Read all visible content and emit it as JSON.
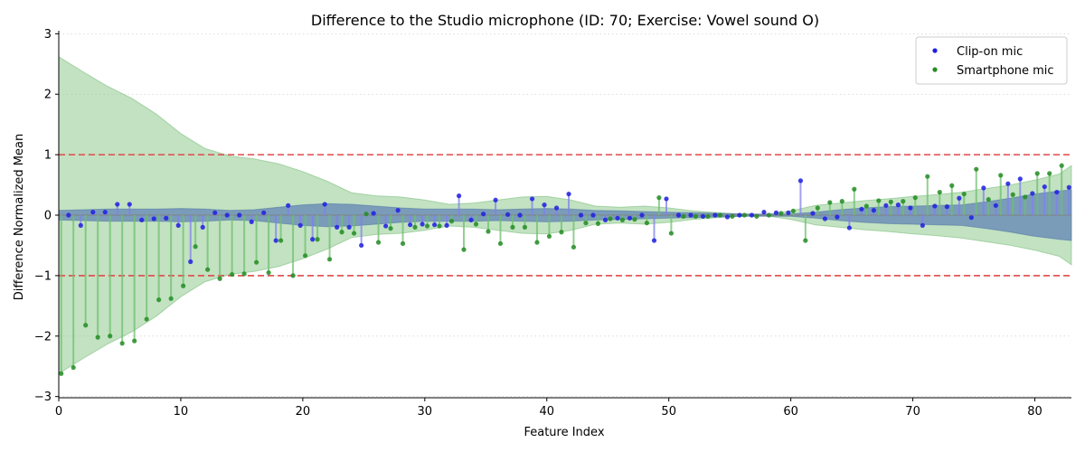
{
  "chart_data": {
    "type": "scatter",
    "title": "Difference to the Studio microphone (ID: 70; Exercise: Vowel sound O)",
    "xlabel": "Feature Index",
    "ylabel": "Difference Normalized Mean",
    "xlim": [
      0,
      83
    ],
    "ylim": [
      -3.02,
      3.05
    ],
    "xticks": [
      0,
      10,
      20,
      30,
      40,
      50,
      60,
      70,
      80
    ],
    "yticks": [
      -3,
      -2,
      -1,
      0,
      1,
      2,
      3
    ],
    "ytick_labels": [
      "−3",
      "−2",
      "−1",
      "0",
      "1",
      "2",
      "3"
    ],
    "threshold_lines": [
      1,
      -1
    ],
    "grid": "horizontal dotted",
    "legend_position": "top-right",
    "colors": {
      "clip_on": "#1f1fe0",
      "smartphone": "#238c23",
      "clip_on_band": "#5b7fb5",
      "smartphone_band": "#8fcb8f",
      "threshold": "#e04848"
    },
    "series": [
      {
        "name": "Clip-on mic",
        "x": [
          0.8,
          1.8,
          2.8,
          3.8,
          4.8,
          5.8,
          6.8,
          7.8,
          8.8,
          9.8,
          10.8,
          11.8,
          12.8,
          13.8,
          14.8,
          15.8,
          16.8,
          17.8,
          18.8,
          19.8,
          20.8,
          21.8,
          22.8,
          23.8,
          24.8,
          25.8,
          26.8,
          27.8,
          28.8,
          29.8,
          30.8,
          31.8,
          32.8,
          33.8,
          34.8,
          35.8,
          36.8,
          37.8,
          38.8,
          39.8,
          40.8,
          41.8,
          42.8,
          43.8,
          44.8,
          45.8,
          46.8,
          47.8,
          48.8,
          49.8,
          50.8,
          51.8,
          52.8,
          53.8,
          54.8,
          55.8,
          56.8,
          57.8,
          58.8,
          59.8,
          60.8,
          61.8,
          62.8,
          63.8,
          64.8,
          65.8,
          66.8,
          67.8,
          68.8,
          69.8,
          70.8,
          71.8,
          72.8,
          73.8,
          74.8,
          75.8,
          76.8,
          77.8,
          78.8,
          79.8,
          80.8,
          81.8,
          82.8
        ],
        "values": [
          0.0,
          -0.17,
          0.05,
          0.05,
          0.18,
          0.18,
          -0.08,
          -0.06,
          -0.05,
          -0.17,
          -0.77,
          -0.2,
          0.04,
          0.0,
          0.0,
          -0.11,
          0.04,
          -0.42,
          0.16,
          -0.17,
          -0.4,
          0.18,
          -0.2,
          -0.2,
          -0.5,
          0.03,
          -0.18,
          0.08,
          -0.16,
          -0.15,
          -0.16,
          -0.17,
          0.32,
          -0.08,
          0.02,
          0.25,
          0.01,
          0.0,
          0.27,
          0.17,
          0.12,
          0.35,
          0.0,
          0.0,
          -0.08,
          -0.05,
          -0.05,
          0.0,
          -0.42,
          0.27,
          0.0,
          0.0,
          -0.02,
          0.0,
          -0.03,
          0.0,
          0.0,
          0.05,
          0.04,
          0.04,
          0.57,
          0.03,
          -0.06,
          -0.03,
          -0.21,
          0.1,
          0.08,
          0.16,
          0.17,
          0.12,
          -0.17,
          0.15,
          0.14,
          0.28,
          -0.04,
          0.45,
          0.16,
          0.52,
          0.6,
          0.36,
          0.47,
          0.38,
          0.46
        ]
      },
      {
        "name": "Smartphone mic",
        "x": [
          0.2,
          1.2,
          2.2,
          3.2,
          4.2,
          5.2,
          6.2,
          7.2,
          8.2,
          9.2,
          10.2,
          11.2,
          12.2,
          13.2,
          14.2,
          15.2,
          16.2,
          17.2,
          18.2,
          19.2,
          20.2,
          21.2,
          22.2,
          23.2,
          24.2,
          25.2,
          26.2,
          27.2,
          28.2,
          29.2,
          30.2,
          31.2,
          32.2,
          33.2,
          34.2,
          35.2,
          36.2,
          37.2,
          38.2,
          39.2,
          40.2,
          41.2,
          42.2,
          43.2,
          44.2,
          45.2,
          46.2,
          47.2,
          48.2,
          49.2,
          50.2,
          51.2,
          52.2,
          53.2,
          54.2,
          55.2,
          56.2,
          57.2,
          58.2,
          59.2,
          60.2,
          61.2,
          62.2,
          63.2,
          64.2,
          65.2,
          66.2,
          67.2,
          68.2,
          69.2,
          70.2,
          71.2,
          72.2,
          73.2,
          74.2,
          75.2,
          76.2,
          77.2,
          78.2,
          79.2,
          80.2,
          81.2,
          82.2
        ],
        "values": [
          -2.62,
          -2.52,
          -1.82,
          -2.02,
          -2.0,
          -2.12,
          -2.08,
          -1.72,
          -1.4,
          -1.38,
          -1.17,
          -0.52,
          -0.9,
          -1.05,
          -0.98,
          -0.97,
          -0.78,
          -0.95,
          -0.42,
          -1.0,
          -0.67,
          -0.4,
          -0.73,
          -0.28,
          -0.3,
          0.02,
          -0.45,
          -0.22,
          -0.47,
          -0.2,
          -0.18,
          -0.18,
          -0.1,
          -0.57,
          -0.15,
          -0.27,
          -0.47,
          -0.2,
          -0.2,
          -0.45,
          -0.35,
          -0.28,
          -0.53,
          -0.13,
          -0.14,
          -0.06,
          -0.08,
          -0.07,
          -0.13,
          0.29,
          -0.3,
          -0.02,
          -0.02,
          -0.02,
          0.0,
          -0.02,
          0.0,
          -0.02,
          0.0,
          0.03,
          0.07,
          -0.42,
          0.12,
          0.21,
          0.23,
          0.43,
          0.15,
          0.24,
          0.22,
          0.23,
          0.29,
          0.64,
          0.38,
          0.49,
          0.35,
          0.76,
          0.26,
          0.66,
          0.34,
          0.3,
          0.69,
          0.69,
          0.82
        ]
      }
    ],
    "bands": [
      {
        "name": "Smartphone mic",
        "x": [
          0,
          2,
          4,
          6,
          8,
          10,
          12,
          14,
          16,
          18,
          20,
          22,
          24,
          26,
          28,
          30,
          32,
          34,
          36,
          38,
          40,
          42,
          44,
          46,
          48,
          50,
          52,
          54,
          56,
          58,
          60,
          62,
          64,
          66,
          68,
          70,
          72,
          74,
          76,
          78,
          80,
          82,
          83
        ],
        "upper": [
          2.62,
          2.37,
          2.13,
          1.93,
          1.67,
          1.35,
          1.1,
          0.98,
          0.93,
          0.85,
          0.72,
          0.56,
          0.37,
          0.32,
          0.3,
          0.25,
          0.18,
          0.2,
          0.25,
          0.3,
          0.31,
          0.25,
          0.15,
          0.13,
          0.15,
          0.12,
          0.07,
          0.04,
          0.02,
          0.01,
          0.07,
          0.16,
          0.2,
          0.24,
          0.27,
          0.31,
          0.34,
          0.38,
          0.44,
          0.5,
          0.58,
          0.68,
          0.82
        ]
      },
      {
        "name": "Clip-on mic",
        "x": [
          0,
          2,
          4,
          6,
          8,
          10,
          12,
          14,
          16,
          18,
          20,
          22,
          24,
          26,
          28,
          30,
          32,
          34,
          36,
          38,
          40,
          42,
          44,
          46,
          48,
          50,
          52,
          54,
          56,
          58,
          60,
          62,
          64,
          66,
          68,
          70,
          72,
          74,
          76,
          78,
          80,
          82,
          83
        ],
        "upper": [
          0.08,
          0.09,
          0.1,
          0.1,
          0.1,
          0.11,
          0.1,
          0.08,
          0.09,
          0.13,
          0.17,
          0.19,
          0.18,
          0.15,
          0.12,
          0.1,
          0.1,
          0.1,
          0.09,
          0.1,
          0.11,
          0.1,
          0.08,
          0.07,
          0.06,
          0.05,
          0.04,
          0.03,
          0.02,
          0.02,
          0.02,
          0.05,
          0.09,
          0.12,
          0.14,
          0.15,
          0.16,
          0.17,
          0.22,
          0.28,
          0.35,
          0.4,
          0.42
        ]
      }
    ]
  }
}
